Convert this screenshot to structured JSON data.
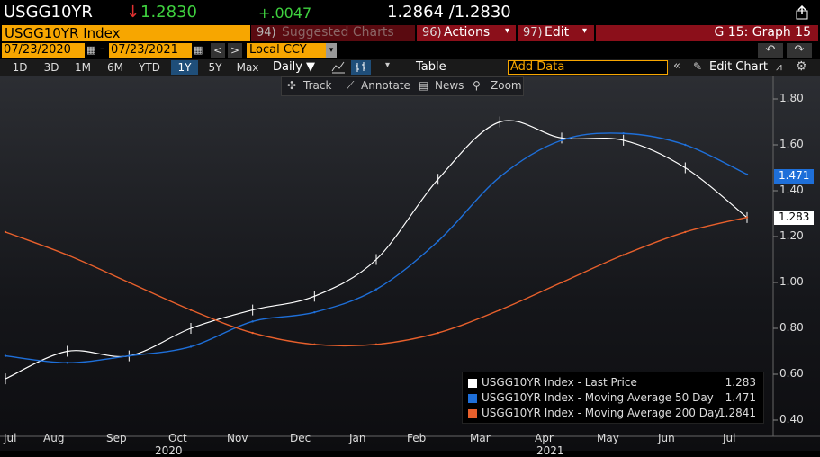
{
  "header": {
    "ticker": "USGG10YR",
    "arrow": "↓",
    "last": "1.2830",
    "change": "+.0047",
    "hi_lo": "1.2864 /1.2830",
    "index_label": "USGG10YR Index",
    "suggested_prefix": "94)",
    "suggested": "Suggested Charts",
    "actions_prefix": "96)",
    "actions": "Actions",
    "edit_prefix": "97)",
    "edit": "Edit",
    "graph_label": "G 15: Graph 15"
  },
  "dates": {
    "start": "07/23/2020",
    "sep": "-",
    "end": "07/23/2021",
    "currency": "Local CCY"
  },
  "timeframes": [
    "1D",
    "3D",
    "1M",
    "6M",
    "YTD",
    "1Y",
    "5Y",
    "Max"
  ],
  "active_timeframe": "1Y",
  "controls": {
    "period": "Daily ▼",
    "table": "Table",
    "add_data_placeholder": "Add Data",
    "edit_chart": "Edit Chart"
  },
  "chart_toolbar": {
    "track": "Track",
    "annotate": "Annotate",
    "news": "News",
    "zoom": "Zoom"
  },
  "badges": {
    "ma50": "1.471",
    "last": "1.283"
  },
  "colors": {
    "price": "#ffffff",
    "ma50": "#1e6fd9",
    "ma200": "#e8602c",
    "accent_orange": "#f7a600",
    "red_bar": "#8b0f1a"
  },
  "legend": [
    {
      "label": "USGG10YR Index - Last Price",
      "value": "1.283",
      "color": "#ffffff"
    },
    {
      "label": "USGG10YR Index - Moving Average 50 Day",
      "value": "1.471",
      "color": "#1e6fd9"
    },
    {
      "label": "USGG10YR Index - Moving Average 200 Day",
      "value": "1.2841",
      "color": "#e8602c"
    }
  ],
  "chart_data": {
    "type": "line",
    "y_ticks": [
      "1.80",
      "1.60",
      "1.40",
      "1.20",
      "1.00",
      "0.80",
      "0.60",
      "0.40"
    ],
    "ylim": [
      0.4,
      1.8
    ],
    "x_ticks": [
      "Jul",
      "Aug",
      "Sep",
      "Oct",
      "Nov",
      "Dec",
      "Jan",
      "Feb",
      "Mar",
      "Apr",
      "May",
      "Jun",
      "Jul"
    ],
    "year_labels": [
      "2020",
      "2021"
    ],
    "series": [
      {
        "name": "USGG10YR Index - Last Price",
        "x": [
          "Jul",
          "Aug",
          "Sep",
          "Oct",
          "Nov",
          "Dec",
          "Jan",
          "Feb",
          "Mar",
          "Apr",
          "May",
          "Jun",
          "Jul"
        ],
        "values": [
          0.58,
          0.7,
          0.68,
          0.8,
          0.88,
          0.94,
          1.1,
          1.45,
          1.7,
          1.63,
          1.62,
          1.5,
          1.283
        ]
      },
      {
        "name": "USGG10YR Index - Moving Average 50 Day",
        "x": [
          "Jul",
          "Aug",
          "Sep",
          "Oct",
          "Nov",
          "Dec",
          "Jan",
          "Feb",
          "Mar",
          "Apr",
          "May",
          "Jun",
          "Jul"
        ],
        "values": [
          0.68,
          0.65,
          0.68,
          0.72,
          0.83,
          0.87,
          0.97,
          1.18,
          1.46,
          1.62,
          1.65,
          1.6,
          1.471
        ]
      },
      {
        "name": "USGG10YR Index - Moving Average 200 Day",
        "x": [
          "Jul",
          "Aug",
          "Sep",
          "Oct",
          "Nov",
          "Dec",
          "Jan",
          "Feb",
          "Mar",
          "Apr",
          "May",
          "Jun",
          "Jul"
        ],
        "values": [
          1.22,
          1.12,
          1.0,
          0.88,
          0.78,
          0.73,
          0.73,
          0.78,
          0.88,
          1.0,
          1.12,
          1.22,
          1.2841
        ]
      }
    ]
  }
}
